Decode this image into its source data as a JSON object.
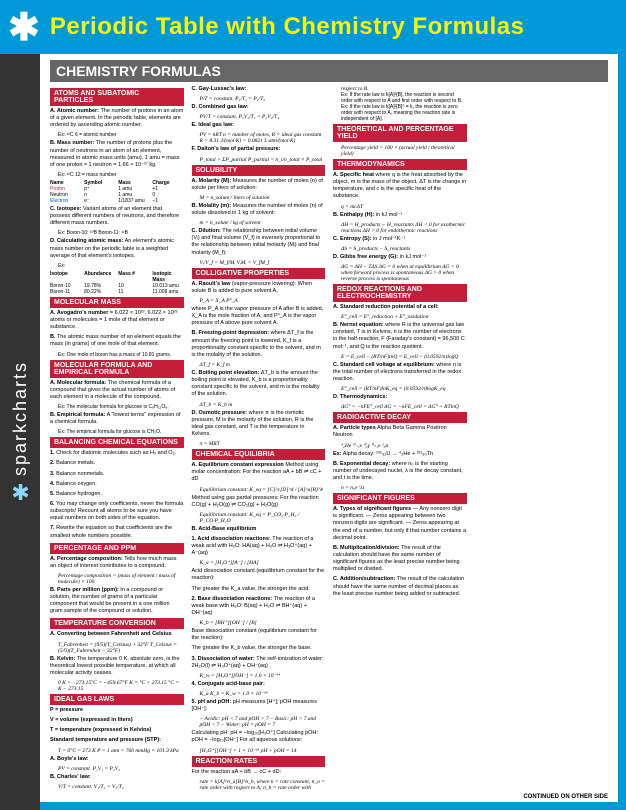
{
  "header": {
    "title": "Periodic Table with Chemistry Formulas"
  },
  "sidebar": {
    "brand": "sparkcharts"
  },
  "main_heading": "CHEMISTRY FORMULAS",
  "footer": "CONTINUED ON OTHER SIDE",
  "sections": [
    {
      "title": "ATOMS AND SUBATOMIC PARTICLES",
      "items": [
        {
          "label": "A. Atomic number:",
          "body": "The number of protons in an atom of a given element. In the periodic table, elements are ordered by ascending atomic number.",
          "ex": "Ex: ¹²C   6 = atomic number"
        },
        {
          "label": "B. Mass number:",
          "body": "The number of protons plus the number of neutrons in an atom of an element, measured in atomic mass units (amu). 1 amu = mass of one proton ≈ 1 neutron = 1.66 × 10⁻²⁷ kg.",
          "ex": "Ex: ¹²C   12 = mass number"
        }
      ],
      "table": {
        "headers": [
          "Name",
          "Symbol",
          "Mass",
          "Charge"
        ],
        "rows": [
          [
            "Proton",
            "p⁺",
            "1 amu",
            "+1"
          ],
          [
            "Neutron",
            "n",
            "1 amu",
            "0"
          ],
          [
            "Electron",
            "e⁻",
            "1/1837 amu",
            "−1"
          ]
        ]
      },
      "items2": [
        {
          "label": "C. Isotopes:",
          "body": "Variant atoms of an element that possess different numbers of neutrons, and therefore different mass numbers.",
          "ex": "Ex: Boron-10: ¹⁰B  Boron-11: ¹¹B"
        },
        {
          "label": "D. Calculating atomic mass:",
          "body": "An element's atomic mass number on the periodic table is a weighted average of that element's isotopes.",
          "ex": "Ex:"
        }
      ],
      "table2": {
        "headers": [
          "Isotope",
          "Abundance",
          "Mass #",
          "Isotopic Mass"
        ],
        "rows": [
          [
            "Boron-10",
            "19.78%",
            "10",
            "10.013 amu"
          ],
          [
            "Boron-11",
            "80.22%",
            "11",
            "11.009 amu"
          ]
        ]
      }
    },
    {
      "title": "MOLECULAR MASS",
      "items": [
        {
          "label": "A. Avogadro's number",
          "body": "= 6.022 × 10²³. 6.022 × 10²³ atoms or molecules = 1 mole of that element or substance."
        },
        {
          "label": "B.",
          "body": "The atomic mass number of an element equals the mass (in grams) of one mole of that element.",
          "ex": "Ex: One mole of boron has a mass of 10.81 grams."
        }
      ]
    },
    {
      "title": "MOLECULAR FORMULA AND EMPIRICAL FORMULA",
      "items": [
        {
          "label": "A. Molecular formula:",
          "body": "The chemical formula of a compound that gives the actual number of atoms of each element in a molecule of the compound.",
          "ex": "Ex: The molecular formula for glucose is C₆H₁₂O₆."
        },
        {
          "label": "B. Empirical formula:",
          "body": "A \"lowest terms\" expression of a chemical formula.",
          "ex": "Ex: The empirical formula for glucose is CH₂O."
        }
      ]
    },
    {
      "title": "BALANCING CHEMICAL EQUATIONS",
      "items": [
        {
          "label": "1.",
          "body": "Check for diatomic molecules such as H₂ and O₂."
        },
        {
          "label": "2.",
          "body": "Balance metals."
        },
        {
          "label": "3.",
          "body": "Balance nonmetals."
        },
        {
          "label": "4.",
          "body": "Balance oxygen."
        },
        {
          "label": "5.",
          "body": "Balance hydrogen."
        },
        {
          "label": "6.",
          "body": "You may change only coefficients, never the formula subscripts! Recount all atoms to be sure you have equal numbers on both sides of the equation."
        },
        {
          "label": "7.",
          "body": "Rewrite the equation so that coefficients are the smallest whole numbers possible."
        }
      ]
    },
    {
      "title": "PERCENTAGE AND PPM",
      "items": [
        {
          "label": "A. Percentage composition:",
          "body": "Tells how much mass an object of interest contributes to a compound.",
          "formula": "Percentage composition = (mass of element / mass of molecule) × 100"
        },
        {
          "label": "B. Parts per million (ppm):",
          "body": "In a compound or solution, the number of grams of a particular component that would be present in a one million gram sample of the compound or solution."
        }
      ]
    },
    {
      "title": "TEMPERATURE CONVERSION",
      "items": [
        {
          "label": "A. Converting between Fahrenheit and Celsius",
          "formula": "T_Fahrenheit = (9/5)(T_Celsius) + 32°F\nT_Celsius = (5/9)(T_Fahrenheit − 32°F)"
        },
        {
          "label": "B. Kelvin:",
          "body": "The temperature 0 K, absolute zero, is the theoretical lowest possible temperature, at which all molecular activity ceases.",
          "formula": "0 K = −273.15°C = −459.67°F\nK = °C + 273.15   °C = K − 273.15"
        }
      ]
    },
    {
      "title": "IDEAL GAS LAWS",
      "items": [
        {
          "label": "P = pressure",
          "body": ""
        },
        {
          "label": "V = volume (expressed in liters)",
          "body": ""
        },
        {
          "label": "T = temperature (expressed in Kelvins)",
          "body": ""
        },
        {
          "label": "Standard temperature and pressure (STP):",
          "formula": "T = 0°C = 273 K\nP = 1 atm = 760 mmHg = 101.3 kPa"
        },
        {
          "label": "A. Boyle's law:",
          "formula": "PV = constant.  P₁V₁ = P₂V₂"
        },
        {
          "label": "B. Charles' law:",
          "formula": "V/T = constant.  V₁/T₁ = V₂/T₂"
        },
        {
          "label": "C. Gay-Lussac's law:",
          "formula": "P/T = constant.  P₁/T₁ = P₂/T₂"
        },
        {
          "label": "D. Combined gas law:",
          "formula": "PV/T = constant.  P₁V₁/T₁ = P₂V₂/T₂"
        },
        {
          "label": "E. Ideal gas law:",
          "formula": "PV = nRT\nn = number of moles, R = ideal gas constant\nR = 8.31 J/(mol·K) = 0.0821 L·atm/(mol·K)"
        },
        {
          "label": "F. Dalton's law of partial pressure:",
          "formula": "P_total = ΣP_partial\nP_partial = n_i/n_total × P_total"
        }
      ]
    },
    {
      "title": "SOLUBILITY",
      "items": [
        {
          "label": "A. Molarity (M):",
          "body": "Measures the number of moles (n) of solute per liters of solution:",
          "formula": "M = n_solute / liters of solution"
        },
        {
          "label": "B. Molality (m):",
          "body": "Measures the number of moles (n) of solute dissolved in 1 kg of solvent:",
          "formula": "m = n_solute / kg of solvent"
        },
        {
          "label": "C. Dilution:",
          "body": "The relationship between initial volume (Vᵢ) and final volume (V_f) is inversely proportional to the relationship between initial molarity (Mᵢ) and final molarity (M_f):",
          "formula": "Vᵢ/V_f = M_f/Mᵢ   VᵢMᵢ = V_fM_f"
        }
      ]
    },
    {
      "title": "COLLIGATIVE PROPERTIES",
      "items": [
        {
          "label": "A. Raoult's law",
          "body": "(vapor-pressure lowering): When solute B is added to pure solvent A,",
          "formula": "P_A = X_A P°_A",
          "body2": "where P_A is the vapor pressure of A after B is added, X_A is the mole fraction of A, and P°_A is the vapor pressure of A above pure solvent A."
        },
        {
          "label": "B. Freezing-point depression:",
          "formula": "ΔT_f = K_f m",
          "body": "where ΔT_f is the amount the freezing point is lowered, K_f is a proportionality constant specific to the solvent, and m is the molality of the solution."
        },
        {
          "label": "C. Boiling point elevation:",
          "formula": "ΔT_b = K_b m",
          "body": "ΔT_b is the amount the boiling point is elevated, K_b is a proportionality constant specific to the solvent, and m is the molality of the solution."
        },
        {
          "label": "D. Osmotic pressure:",
          "formula": "π = MRT",
          "body": "where π is the osmotic pressure, M is the molarity of the solution, R is the ideal gas constant, and T is the temperature in Kelvins."
        }
      ]
    },
    {
      "title": "CHEMICAL EQUILIBRIA",
      "items": [
        {
          "label": "A. Equilibrium constant expression",
          "body": "Method using molar concentration: For the reaction aA + bB ⇌ cC + dD",
          "formula": "Equilibrium constant: K_eq = [C]^c[D]^d / [A]^a[B]^b"
        },
        {
          "label": "",
          "body": "Method using gas partial pressures: For the reaction CO(g) + H₂O(g) ⇌ CO₂(g) + H₂O(g)",
          "formula": "Equilibrium constant: K_eq = P_CO₂·P_H₂ / P_CO·P_H₂O"
        },
        {
          "label": "B. Acid-Base equilibrium",
          "body": ""
        },
        {
          "label": "1. Acid dissociation reactions:",
          "body": "The reaction of a weak acid with H₂O: HA(aq) + H₂O ⇌ H₃O⁺(aq) + A⁻(aq)",
          "body2": "Acid dissociation constant (equilibrium constant for the reaction):",
          "formula": "K_a = [H₃O⁺][A⁻] / [HA]",
          "body3": "The greater the K_a value, the stronger the acid."
        },
        {
          "label": "2. Base dissociation reactions:",
          "body": "The reaction of a weak base with H₂O: B(aq) + H₂O ⇌ BH⁺(aq) + OH⁻(aq)",
          "body2": "Base dissociation constant (equilibrium constant for the reaction):",
          "formula": "K_b = [BH⁺][OH⁻] / [B]",
          "body3": "The greater the K_b value, the stronger the base."
        },
        {
          "label": "3. Dissociation of water:",
          "body": "The self-ionization of water: 2H₂O(l) ⇌ H₃O⁺(aq) + OH⁻(aq)",
          "formula": "K_w = [H₃O⁺][OH⁻] = 1.0 × 10⁻¹⁴"
        },
        {
          "label": "4. Conjugate acid-base pair:",
          "formula": "K_a K_b = K_w = 1.0 × 10⁻¹⁴"
        },
        {
          "label": "5. pH and pOH:",
          "body": "pH measures [H⁺]; pOH measures [OH⁻]:",
          "formula": "− Acidic: pH < 7 and pOH > 7\n− Basic: pH > 7 and pOH < 7\n− Water: pH = pOH = 7",
          "body2": "Calculating pH: pH = −log₁₀[H₃O⁺]\nCalculating pOH: pOH = −log₁₀[OH⁻]\nFor all aqueous solutions:",
          "formula2": "[H₃O⁺][OH⁻] = 1 × 10⁻¹⁴\npH + pOH = 14"
        }
      ]
    },
    {
      "title": "REACTION RATES",
      "items": [
        {
          "label": "",
          "body": "For the reaction aA + bB → cC + dD:",
          "formula": "rate = k[A]^n_a[B]^n_b, where k = rate constant, n_a = rate order with respect to A; n_b = rate order with respect to B.",
          "ex": "Ex: If the rate law is k[A]²[B], the reaction is second order with respect to A and first order with respect to B.\nEx: If the rate law is k[A]²[B]⁰ = k, the reaction is zero order with respect to A, meaning the reaction rate is independent of [A]."
        }
      ]
    },
    {
      "title": "THEORETICAL AND PERCENTAGE YIELD",
      "items": [
        {
          "label": "",
          "formula": "Percentage yield = 100 × (actual yield / theoretical yield)"
        }
      ]
    },
    {
      "title": "THERMODYNAMICS",
      "items": [
        {
          "label": "A. Specific heat",
          "formula": "q = mcΔT",
          "body": "where q is the heat absorbed by the object, m is the mass of the object, ΔT is the change in temperature, and c is the specific heat of the substance."
        },
        {
          "label": "B. Enthalpy (H):",
          "body": "in kJ mol⁻¹",
          "formula": "ΔH = H_products − H_reactants\nΔH < 0 for exothermic reactions\nΔH > 0 for endothermic reactions"
        },
        {
          "label": "C. Entropy (S):",
          "body": "in J mol⁻¹K⁻¹",
          "formula": "ΔS = S_products − S_reactants"
        },
        {
          "label": "D. Gibbs free energy (G):",
          "body": "in kJ mol⁻¹",
          "formula": "ΔG = ΔH − TΔS\nΔG = 0 when at equilibrium\nΔG < 0 when forward process is spontaneous\nΔG > 0 when reverse process is spontaneous"
        }
      ]
    },
    {
      "title": "REDOX REACTIONS AND ELECTROCHEMISTRY",
      "items": [
        {
          "label": "A. Standard reduction potential of a cell:",
          "formula": "E°_cell = E°_reduction + E°_oxidation"
        },
        {
          "label": "B. Nernst equation:",
          "formula": "E = E_cell − (RT/nF)lnQ = E_cell − (0.0592/n)logQ",
          "body": "where R is the universal gas law constant, T is in Kelvins, n is the number of electrons in the half-reaction, F (Faraday's constant) = 96,500 C mol⁻¹, and Q is the reaction quotient."
        },
        {
          "label": "C. Standard cell voltage at equilibrium:",
          "formula": "E°_cell = (RT/nF)lnK_eq = (0.0592/n)logK_eq",
          "body": "where n is the total number of electrons transferred in the redox reaction."
        },
        {
          "label": "D. Thermodynamics:",
          "formula": "ΔG° = −nFE°_cell\nΔG = −nFE_cell = ΔG° + RTlnQ"
        }
      ]
    },
    {
      "title": "RADIOACTIVE DECAY",
      "items": [
        {
          "label": "A. Particle types",
          "body": "Alpha  Beta  Gamma  Positron  Neutron",
          "formula": "⁴₂He  ⁰₋₁e  ⁰₀γ  ⁰₊₁e  ¹₀n"
        },
        {
          "label": "Ex:",
          "body": "Alpha decay: ²³⁵₉₂U → ⁴₂He + ²³¹₉₀Th"
        },
        {
          "label": "B. Exponential decay:",
          "formula": "n = n₀e⁻λt",
          "body": "where n₀ is the starting number of undecayed nuclei, λ is the decay constant, and t is the time."
        }
      ]
    },
    {
      "title": "SIGNIFICANT FIGURES",
      "items": [
        {
          "label": "A. Types of significant figures",
          "body": "— Any nonzero digit is significant.\n— Zeros appearing between two nonzero digits are significant.\n— Zeros appearing at the end of a number, but only if that number contains a decimal point."
        },
        {
          "label": "B. Multiplication/division:",
          "body": "The result of the calculation should have the same number of significant figures as the least precise number being multiplied or divided."
        },
        {
          "label": "C. Addition/subtraction:",
          "body": "The result of the calculation should have the same number of decimal places as the least precise number being added or subtracted."
        }
      ]
    }
  ]
}
